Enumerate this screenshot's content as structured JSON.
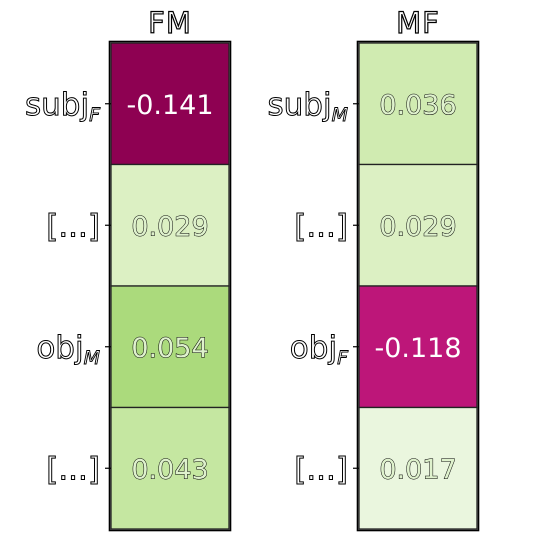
{
  "chart_data": [
    {
      "type": "heatmap",
      "title": "FM",
      "row_labels": [
        {
          "base": "subj",
          "sub": "F"
        },
        {
          "base": "[...]",
          "sub": ""
        },
        {
          "base": "obj",
          "sub": "M"
        },
        {
          "base": "[...]",
          "sub": ""
        }
      ],
      "values": [
        -0.141,
        0.029,
        0.054,
        0.043
      ],
      "value_labels": [
        "-0.141",
        "0.029",
        "0.054",
        "0.043"
      ],
      "colors": [
        "#8e0152",
        "#dcf0c3",
        "#abda7c",
        "#c5e7a1"
      ]
    },
    {
      "type": "heatmap",
      "title": "MF",
      "row_labels": [
        {
          "base": "subj",
          "sub": "M"
        },
        {
          "base": "[...]",
          "sub": ""
        },
        {
          "base": "obj",
          "sub": "F"
        },
        {
          "base": "[...]",
          "sub": ""
        }
      ],
      "values": [
        0.036,
        0.029,
        -0.118,
        0.017
      ],
      "value_labels": [
        "0.036",
        "0.029",
        "-0.118",
        "0.017"
      ],
      "colors": [
        "#d0ebb1",
        "#dcf0c3",
        "#bd1679",
        "#eaf6de"
      ]
    }
  ]
}
